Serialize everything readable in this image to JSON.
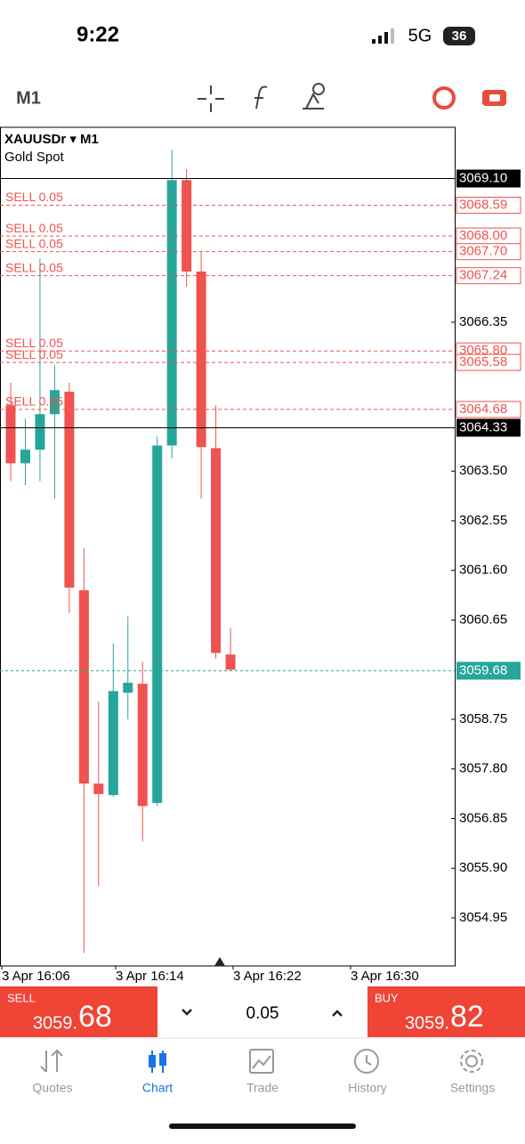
{
  "status_bar": {
    "time": "9:22",
    "network": "5G",
    "battery": "36"
  },
  "toolbar": {
    "timeframe": "M1"
  },
  "chart_data": {
    "type": "candlestick",
    "symbol": "XAUUSDr ▾ M1",
    "subtitle": "Gold Spot",
    "up_color": "#26a69a",
    "down_color": "#ef5350",
    "ylim": [
      3054.03,
      3070.08
    ],
    "yticks": [
      3066.35,
      {
        "value": 3063.5,
        "label": "3063.50"
      },
      3062.55,
      {
        "value": 3061.6,
        "label": "3061.60"
      },
      3060.65,
      3058.75,
      {
        "value": 3057.8,
        "label": "3057.80"
      },
      3056.85,
      {
        "value": 3055.9,
        "label": "3055.90"
      },
      3054.95
    ],
    "xticks": [
      "3 Apr 16:06",
      "3 Apr 16:14",
      "3 Apr 16:22",
      "3 Apr 16:30"
    ],
    "candles": [
      {
        "open": 3064.76,
        "high": 3065.19,
        "low": 3063.31,
        "close": 3063.65
      },
      {
        "open": 3063.65,
        "high": 3064.5,
        "low": 3063.23,
        "close": 3063.91
      },
      {
        "open": 3063.91,
        "high": 3067.57,
        "low": 3063.31,
        "close": 3064.59
      },
      {
        "open": 3064.59,
        "high": 3065.53,
        "low": 3062.97,
        "close": 3065.05
      },
      {
        "open": 3065.02,
        "high": 3065.19,
        "low": 3060.79,
        "close": 3061.27
      },
      {
        "open": 3061.22,
        "high": 3062.03,
        "low": 3054.28,
        "close": 3057.52
      },
      {
        "open": 3057.52,
        "high": 3059.09,
        "low": 3055.56,
        "close": 3057.32
      },
      {
        "open": 3057.3,
        "high": 3060.2,
        "low": 3057.27,
        "close": 3059.29
      },
      {
        "open": 3059.26,
        "high": 3060.72,
        "low": 3058.75,
        "close": 3059.45
      },
      {
        "open": 3059.43,
        "high": 3059.85,
        "low": 3056.41,
        "close": 3057.09
      },
      {
        "open": 3057.15,
        "high": 3064.16,
        "low": 3057.09,
        "close": 3063.99
      },
      {
        "open": 3063.99,
        "high": 3069.65,
        "low": 3063.74,
        "close": 3069.07
      },
      {
        "open": 3069.07,
        "high": 3069.28,
        "low": 3067.03,
        "close": 3067.32
      },
      {
        "open": 3067.32,
        "high": 3067.69,
        "low": 3062.97,
        "close": 3063.96
      },
      {
        "open": 3063.94,
        "high": 3064.76,
        "low": 3059.91,
        "close": 3060.02
      },
      {
        "open": 3059.99,
        "high": 3060.5,
        "low": 3059.68,
        "close": 3059.7
      }
    ],
    "price_lines": [
      {
        "value": 3069.1,
        "label": "3069.10",
        "color": "#000000"
      },
      {
        "value": 3064.33,
        "label": "3064.33",
        "color": "#000000"
      },
      {
        "value": 3059.68,
        "label": "3059.68",
        "color": "#26a69a"
      }
    ],
    "orders": [
      {
        "value": 3068.59,
        "label": "3068.59",
        "text": "SELL 0.05"
      },
      {
        "value": 3068.0,
        "label": "3068.00",
        "text": "SELL 0.05"
      },
      {
        "value": 3067.7,
        "label": "3067.70",
        "text": "SELL 0.05"
      },
      {
        "value": 3067.24,
        "label": "3067.24",
        "text": "SELL 0.05"
      },
      {
        "value": 3065.8,
        "label": "3065.80",
        "text": "SELL 0.05"
      },
      {
        "value": 3065.58,
        "label": "3065.58",
        "text": "SELL 0.05"
      },
      {
        "value": 3064.68,
        "label": "3064.68",
        "text": "SELL 0.05"
      }
    ]
  },
  "trade_panel": {
    "sell_label": "SELL",
    "sell_main": "3059.",
    "sell_big": "68",
    "volume": "0.05",
    "buy_label": "BUY",
    "buy_main": "3059.",
    "buy_big": "82"
  },
  "tabs": [
    "Quotes",
    "Chart",
    "Trade",
    "History",
    "Settings"
  ]
}
